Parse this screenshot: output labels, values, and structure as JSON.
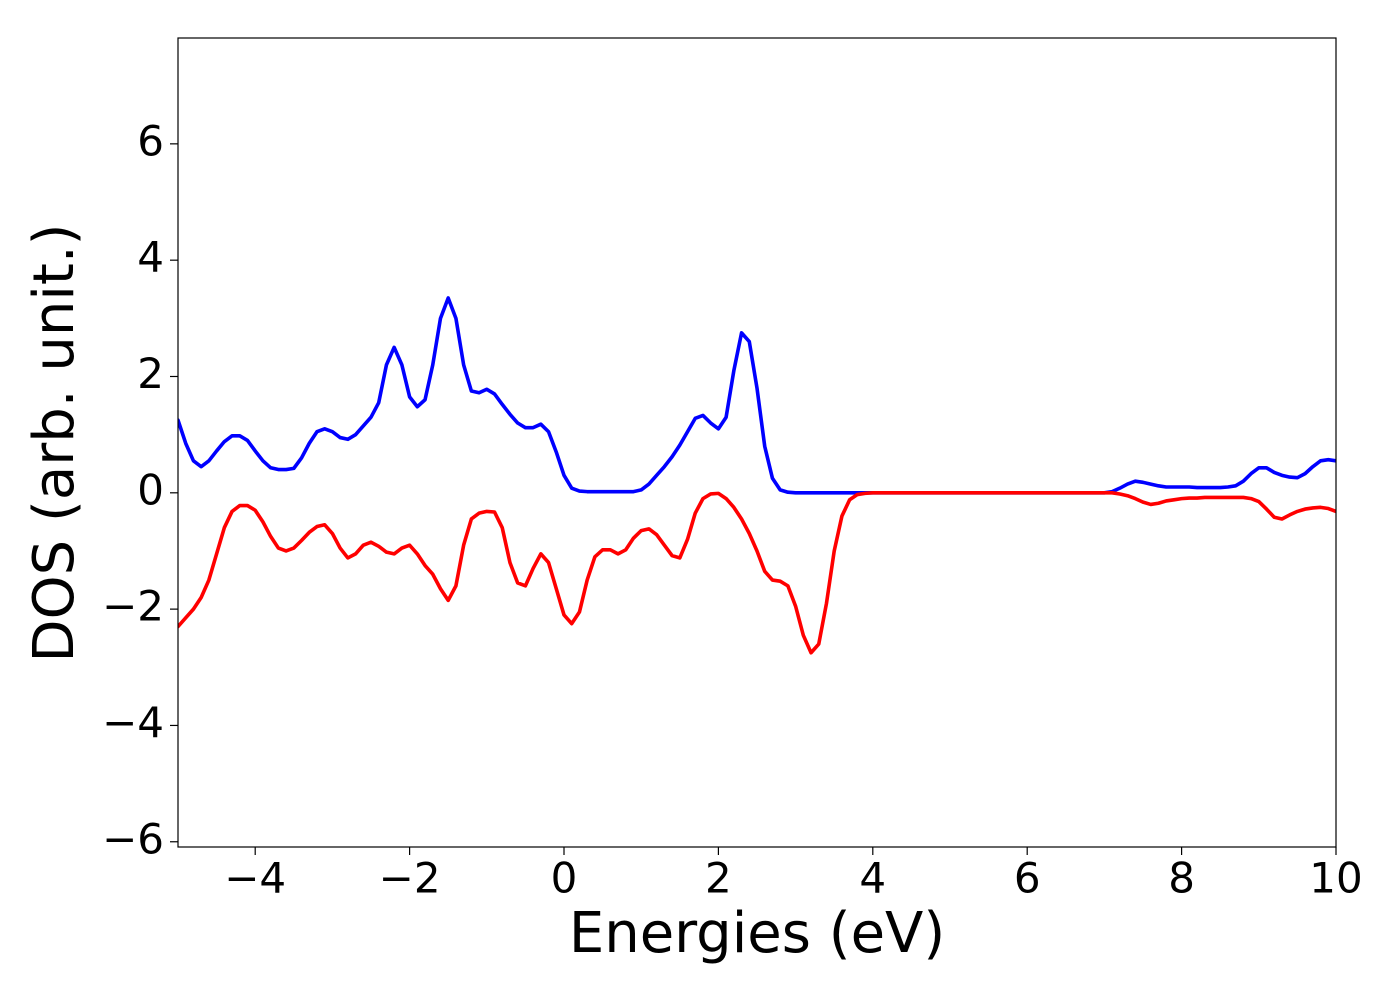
{
  "chart_data": {
    "type": "line",
    "xlabel": "Energies (eV)",
    "ylabel": "DOS (arb. unit.)",
    "x": [
      -5.0,
      -4.9,
      -4.8,
      -4.7,
      -4.6,
      -4.5,
      -4.4,
      -4.3,
      -4.2,
      -4.1,
      -4.0,
      -3.9,
      -3.8,
      -3.7,
      -3.6,
      -3.5,
      -3.4,
      -3.3,
      -3.2,
      -3.1,
      -3.0,
      -2.9,
      -2.8,
      -2.7,
      -2.6,
      -2.5,
      -2.4,
      -2.3,
      -2.2,
      -2.1,
      -2.0,
      -1.9,
      -1.8,
      -1.7,
      -1.6,
      -1.5,
      -1.4,
      -1.3,
      -1.2,
      -1.1,
      -1.0,
      -0.9,
      -0.8,
      -0.7,
      -0.6,
      -0.5,
      -0.4,
      -0.3,
      -0.2,
      -0.1,
      0.0,
      0.1,
      0.2,
      0.3,
      0.4,
      0.5,
      0.6,
      0.7,
      0.8,
      0.9,
      1.0,
      1.1,
      1.2,
      1.3,
      1.4,
      1.5,
      1.6,
      1.7,
      1.8,
      1.9,
      2.0,
      2.1,
      2.2,
      2.3,
      2.4,
      2.5,
      2.6,
      2.7,
      2.8,
      2.9,
      3.0,
      3.1,
      3.2,
      3.3,
      3.4,
      3.5,
      3.6,
      3.7,
      3.8,
      3.9,
      4.0,
      4.1,
      4.2,
      4.3,
      4.4,
      4.5,
      4.6,
      4.7,
      4.8,
      4.9,
      5.0,
      5.1,
      5.2,
      5.3,
      5.4,
      5.5,
      5.6,
      5.7,
      5.8,
      5.9,
      6.0,
      6.1,
      6.2,
      6.3,
      6.4,
      6.5,
      6.6,
      6.7,
      6.8,
      6.9,
      7.0,
      7.1,
      7.2,
      7.3,
      7.4,
      7.5,
      7.6,
      7.7,
      7.8,
      7.9,
      8.0,
      8.1,
      8.2,
      8.3,
      8.4,
      8.5,
      8.6,
      8.7,
      8.8,
      8.9,
      9.0,
      9.1,
      9.2,
      9.3,
      9.4,
      9.5,
      9.6,
      9.7,
      9.8,
      9.9,
      10.0
    ],
    "series": [
      {
        "color": "#0000ff",
        "values": [
          1.25,
          0.85,
          0.55,
          0.45,
          0.55,
          0.72,
          0.88,
          0.98,
          0.98,
          0.9,
          0.72,
          0.55,
          0.43,
          0.4,
          0.4,
          0.42,
          0.6,
          0.85,
          1.05,
          1.1,
          1.05,
          0.95,
          0.92,
          1.0,
          1.15,
          1.3,
          1.55,
          2.2,
          2.5,
          2.2,
          1.65,
          1.48,
          1.6,
          2.2,
          3.0,
          3.35,
          3.0,
          2.2,
          1.75,
          1.72,
          1.78,
          1.7,
          1.52,
          1.35,
          1.2,
          1.12,
          1.12,
          1.18,
          1.05,
          0.7,
          0.3,
          0.08,
          0.03,
          0.02,
          0.02,
          0.02,
          0.02,
          0.02,
          0.02,
          0.02,
          0.05,
          0.15,
          0.3,
          0.45,
          0.62,
          0.82,
          1.05,
          1.28,
          1.33,
          1.2,
          1.1,
          1.3,
          2.1,
          2.75,
          2.6,
          1.8,
          0.8,
          0.25,
          0.05,
          0.01,
          0,
          0,
          0,
          0,
          0,
          0,
          0,
          0,
          0,
          0,
          0,
          0,
          0,
          0,
          0,
          0,
          0,
          0,
          0,
          0,
          0,
          0,
          0,
          0,
          0,
          0,
          0,
          0,
          0,
          0,
          0,
          0,
          0,
          0,
          0,
          0,
          0,
          0,
          0,
          0,
          0,
          0.02,
          0.08,
          0.15,
          0.2,
          0.18,
          0.15,
          0.12,
          0.1,
          0.1,
          0.1,
          0.1,
          0.09,
          0.09,
          0.09,
          0.09,
          0.1,
          0.12,
          0.2,
          0.33,
          0.43,
          0.43,
          0.35,
          0.3,
          0.27,
          0.26,
          0.33,
          0.45,
          0.55,
          0.57,
          0.55
        ]
      },
      {
        "color": "#ff0000",
        "values": [
          -2.3,
          -2.15,
          -2.0,
          -1.8,
          -1.5,
          -1.05,
          -0.6,
          -0.32,
          -0.22,
          -0.22,
          -0.3,
          -0.5,
          -0.75,
          -0.95,
          -1.0,
          -0.95,
          -0.82,
          -0.68,
          -0.58,
          -0.55,
          -0.7,
          -0.95,
          -1.12,
          -1.05,
          -0.9,
          -0.85,
          -0.92,
          -1.02,
          -1.05,
          -0.95,
          -0.9,
          -1.05,
          -1.25,
          -1.4,
          -1.65,
          -1.85,
          -1.6,
          -0.9,
          -0.45,
          -0.35,
          -0.32,
          -0.33,
          -0.6,
          -1.2,
          -1.55,
          -1.6,
          -1.3,
          -1.05,
          -1.2,
          -1.65,
          -2.1,
          -2.25,
          -2.05,
          -1.5,
          -1.1,
          -0.98,
          -0.98,
          -1.05,
          -0.98,
          -0.78,
          -0.65,
          -0.62,
          -0.72,
          -0.9,
          -1.08,
          -1.12,
          -0.8,
          -0.35,
          -0.1,
          -0.02,
          -0.01,
          -0.1,
          -0.25,
          -0.45,
          -0.7,
          -1.0,
          -1.35,
          -1.5,
          -1.52,
          -1.6,
          -1.95,
          -2.45,
          -2.75,
          -2.6,
          -1.9,
          -1.0,
          -0.4,
          -0.12,
          -0.03,
          -0.01,
          0,
          0,
          0,
          0,
          0,
          0,
          0,
          0,
          0,
          0,
          0,
          0,
          0,
          0,
          0,
          0,
          0,
          0,
          0,
          0,
          0,
          0,
          0,
          0,
          0,
          0,
          0,
          0,
          0,
          0,
          0,
          0,
          -0.02,
          -0.05,
          -0.1,
          -0.16,
          -0.2,
          -0.18,
          -0.14,
          -0.12,
          -0.1,
          -0.09,
          -0.09,
          -0.08,
          -0.08,
          -0.08,
          -0.08,
          -0.08,
          -0.08,
          -0.1,
          -0.15,
          -0.28,
          -0.42,
          -0.45,
          -0.38,
          -0.32,
          -0.28,
          -0.26,
          -0.25,
          -0.27,
          -0.32
        ]
      }
    ],
    "xlim": [
      -5,
      10
    ],
    "ylim": [
      -6.09,
      7.82
    ],
    "xticks": [
      {
        "value": -4,
        "label": "−4"
      },
      {
        "value": -2,
        "label": "−2"
      },
      0,
      2,
      4,
      6,
      8,
      10
    ],
    "yticks": [
      {
        "value": -6,
        "label": "−6"
      },
      {
        "value": -4,
        "label": "−4"
      },
      {
        "value": -2,
        "label": "−2"
      },
      0,
      2,
      4,
      6
    ],
    "grid": false
  }
}
